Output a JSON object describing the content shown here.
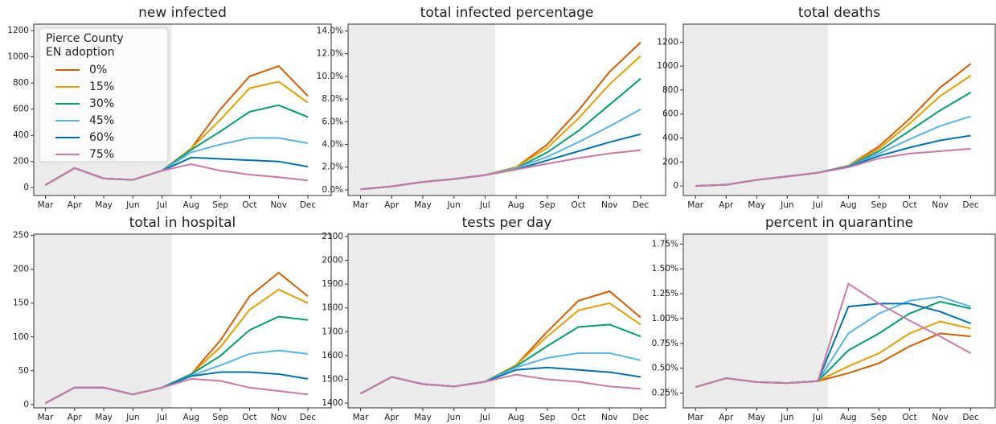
{
  "chart_data": [
    {
      "type": "line",
      "title": "new infected",
      "categories": [
        "Mar",
        "Apr",
        "May",
        "Jun",
        "Jul",
        "Aug",
        "Sep",
        "Oct",
        "Nov",
        "Dec"
      ],
      "ylim": [
        -60,
        1250
      ],
      "yticks": [
        0,
        200,
        400,
        600,
        800,
        1000,
        1200
      ],
      "legend_title": [
        "Pierce County",
        "EN adoption"
      ],
      "legend": "upper left",
      "series": [
        {
          "name": "0%",
          "color": "#d55e00",
          "values": [
            20,
            150,
            70,
            60,
            130,
            300,
            600,
            850,
            930,
            700
          ]
        },
        {
          "name": "15%",
          "color": "#e69f00",
          "values": [
            20,
            150,
            70,
            60,
            130,
            300,
            520,
            760,
            810,
            650
          ]
        },
        {
          "name": "30%",
          "color": "#009e73",
          "values": [
            20,
            150,
            70,
            60,
            130,
            290,
            430,
            580,
            630,
            540
          ]
        },
        {
          "name": "45%",
          "color": "#56b4e9",
          "values": [
            20,
            150,
            70,
            60,
            130,
            270,
            330,
            380,
            380,
            340
          ]
        },
        {
          "name": "60%",
          "color": "#0072b2",
          "values": [
            20,
            150,
            70,
            60,
            130,
            230,
            220,
            210,
            200,
            160
          ]
        },
        {
          "name": "75%",
          "color": "#cc79a7",
          "values": [
            20,
            150,
            70,
            60,
            130,
            180,
            130,
            100,
            80,
            55
          ]
        }
      ]
    },
    {
      "type": "line",
      "title": "total infected percentage",
      "categories": [
        "Mar",
        "Apr",
        "May",
        "Jun",
        "Jul",
        "Aug",
        "Sep",
        "Oct",
        "Nov",
        "Dec"
      ],
      "ylim": [
        -0.5,
        14.6
      ],
      "yticks": [
        {
          "value": 0,
          "label": "0.0%"
        },
        {
          "value": 2,
          "label": "2.0%"
        },
        {
          "value": 4,
          "label": "4.0%"
        },
        {
          "value": 6,
          "label": "6.0%"
        },
        {
          "value": 8,
          "label": "8.0%"
        },
        {
          "value": 10,
          "label": "10.0%"
        },
        {
          "value": 12,
          "label": "12.0%"
        },
        {
          "value": 14,
          "label": "14.0%"
        }
      ],
      "series": [
        {
          "name": "0%",
          "color": "#d55e00",
          "values": [
            0.05,
            0.3,
            0.7,
            0.95,
            1.3,
            2.0,
            4.0,
            7.0,
            10.4,
            13.0
          ]
        },
        {
          "name": "15%",
          "color": "#e69f00",
          "values": [
            0.05,
            0.3,
            0.7,
            0.95,
            1.3,
            2.0,
            3.7,
            6.3,
            9.3,
            11.8
          ]
        },
        {
          "name": "30%",
          "color": "#009e73",
          "values": [
            0.05,
            0.3,
            0.7,
            0.95,
            1.3,
            1.9,
            3.3,
            5.2,
            7.5,
            9.8
          ]
        },
        {
          "name": "45%",
          "color": "#56b4e9",
          "values": [
            0.05,
            0.3,
            0.7,
            0.95,
            1.3,
            1.9,
            2.9,
            4.2,
            5.6,
            7.1
          ]
        },
        {
          "name": "60%",
          "color": "#0072b2",
          "values": [
            0.05,
            0.3,
            0.7,
            0.95,
            1.3,
            1.8,
            2.6,
            3.4,
            4.2,
            4.9
          ]
        },
        {
          "name": "75%",
          "color": "#cc79a7",
          "values": [
            0.05,
            0.3,
            0.7,
            0.95,
            1.3,
            1.8,
            2.3,
            2.8,
            3.2,
            3.5
          ]
        }
      ]
    },
    {
      "type": "line",
      "title": "total deaths",
      "categories": [
        "Mar",
        "Apr",
        "May",
        "Jun",
        "Jul",
        "Aug",
        "Sep",
        "Oct",
        "Nov",
        "Dec"
      ],
      "ylim": [
        -80,
        1350
      ],
      "yticks": [
        0,
        200,
        400,
        600,
        800,
        1000,
        1200
      ],
      "series": [
        {
          "name": "0%",
          "color": "#d55e00",
          "values": [
            0,
            10,
            50,
            80,
            110,
            170,
            330,
            560,
            820,
            1020
          ]
        },
        {
          "name": "15%",
          "color": "#e69f00",
          "values": [
            0,
            10,
            50,
            80,
            110,
            170,
            310,
            520,
            750,
            920
          ]
        },
        {
          "name": "30%",
          "color": "#009e73",
          "values": [
            0,
            10,
            50,
            80,
            110,
            165,
            290,
            460,
            630,
            780
          ]
        },
        {
          "name": "45%",
          "color": "#56b4e9",
          "values": [
            0,
            10,
            50,
            80,
            110,
            165,
            270,
            390,
            500,
            580
          ]
        },
        {
          "name": "60%",
          "color": "#0072b2",
          "values": [
            0,
            10,
            50,
            80,
            110,
            160,
            250,
            320,
            380,
            420
          ]
        },
        {
          "name": "75%",
          "color": "#cc79a7",
          "values": [
            0,
            10,
            50,
            80,
            110,
            155,
            230,
            270,
            290,
            310
          ]
        }
      ]
    },
    {
      "type": "line",
      "title": "total in hospital",
      "categories": [
        "Mar",
        "Apr",
        "May",
        "Jun",
        "Jul",
        "Aug",
        "Sep",
        "Oct",
        "Nov",
        "Dec"
      ],
      "ylim": [
        -5,
        252
      ],
      "yticks": [
        0,
        50,
        100,
        150,
        200,
        250
      ],
      "series": [
        {
          "name": "0%",
          "color": "#d55e00",
          "values": [
            2,
            25,
            25,
            15,
            25,
            45,
            95,
            160,
            195,
            160
          ]
        },
        {
          "name": "15%",
          "color": "#e69f00",
          "values": [
            2,
            25,
            25,
            15,
            25,
            45,
            85,
            140,
            170,
            150
          ]
        },
        {
          "name": "30%",
          "color": "#009e73",
          "values": [
            2,
            25,
            25,
            15,
            25,
            45,
            72,
            110,
            130,
            125
          ]
        },
        {
          "name": "45%",
          "color": "#56b4e9",
          "values": [
            2,
            25,
            25,
            15,
            25,
            43,
            58,
            75,
            80,
            75
          ]
        },
        {
          "name": "60%",
          "color": "#0072b2",
          "values": [
            2,
            25,
            25,
            15,
            25,
            42,
            48,
            48,
            45,
            38
          ]
        },
        {
          "name": "75%",
          "color": "#cc79a7",
          "values": [
            2,
            25,
            25,
            15,
            25,
            38,
            35,
            25,
            20,
            15
          ]
        }
      ]
    },
    {
      "type": "line",
      "title": "tests per day",
      "categories": [
        "Mar",
        "Apr",
        "May",
        "Jun",
        "Jul",
        "Aug",
        "Sep",
        "Oct",
        "Nov",
        "Dec"
      ],
      "ylim": [
        1380,
        2110
      ],
      "yticks": [
        1400,
        1500,
        1600,
        1700,
        1800,
        1900,
        2000,
        2100
      ],
      "series": [
        {
          "name": "0%",
          "color": "#d55e00",
          "values": [
            1440,
            1510,
            1480,
            1470,
            1490,
            1560,
            1700,
            1830,
            1870,
            1760
          ]
        },
        {
          "name": "15%",
          "color": "#e69f00",
          "values": [
            1440,
            1510,
            1480,
            1470,
            1490,
            1560,
            1680,
            1790,
            1820,
            1730
          ]
        },
        {
          "name": "30%",
          "color": "#009e73",
          "values": [
            1440,
            1510,
            1480,
            1470,
            1490,
            1555,
            1640,
            1720,
            1730,
            1680
          ]
        },
        {
          "name": "45%",
          "color": "#56b4e9",
          "values": [
            1440,
            1510,
            1480,
            1470,
            1490,
            1550,
            1590,
            1610,
            1610,
            1580
          ]
        },
        {
          "name": "60%",
          "color": "#0072b2",
          "values": [
            1440,
            1510,
            1480,
            1470,
            1490,
            1540,
            1550,
            1540,
            1530,
            1510
          ]
        },
        {
          "name": "75%",
          "color": "#cc79a7",
          "values": [
            1440,
            1510,
            1480,
            1470,
            1490,
            1520,
            1500,
            1490,
            1470,
            1460
          ]
        }
      ]
    },
    {
      "type": "line",
      "title": "percent in quarantine",
      "categories": [
        "Mar",
        "Apr",
        "May",
        "Jun",
        "Jul",
        "Aug",
        "Sep",
        "Oct",
        "Nov",
        "Dec"
      ],
      "ylim": [
        0.1,
        1.85
      ],
      "yticks": [
        {
          "value": 0.25,
          "label": "0.25%"
        },
        {
          "value": 0.5,
          "label": "0.50%"
        },
        {
          "value": 0.75,
          "label": "0.75%"
        },
        {
          "value": 1,
          "label": "1.00%"
        },
        {
          "value": 1.25,
          "label": "1.25%"
        },
        {
          "value": 1.5,
          "label": "1.50%"
        },
        {
          "value": 1.75,
          "label": "1.75%"
        }
      ],
      "series": [
        {
          "name": "0%",
          "color": "#d55e00",
          "values": [
            0.31,
            0.4,
            0.36,
            0.35,
            0.37,
            0.45,
            0.55,
            0.72,
            0.85,
            0.82
          ]
        },
        {
          "name": "15%",
          "color": "#e69f00",
          "values": [
            0.31,
            0.4,
            0.36,
            0.35,
            0.37,
            0.52,
            0.65,
            0.85,
            0.97,
            0.9
          ]
        },
        {
          "name": "30%",
          "color": "#009e73",
          "values": [
            0.31,
            0.4,
            0.36,
            0.35,
            0.37,
            0.68,
            0.85,
            1.05,
            1.17,
            1.1
          ]
        },
        {
          "name": "45%",
          "color": "#56b4e9",
          "values": [
            0.31,
            0.4,
            0.36,
            0.35,
            0.37,
            0.85,
            1.05,
            1.18,
            1.22,
            1.12
          ]
        },
        {
          "name": "60%",
          "color": "#0072b2",
          "values": [
            0.31,
            0.4,
            0.36,
            0.35,
            0.37,
            1.12,
            1.15,
            1.15,
            1.07,
            0.95
          ]
        },
        {
          "name": "75%",
          "color": "#cc79a7",
          "values": [
            0.31,
            0.4,
            0.36,
            0.35,
            0.37,
            1.35,
            1.15,
            0.98,
            0.82,
            0.65
          ]
        }
      ]
    }
  ]
}
